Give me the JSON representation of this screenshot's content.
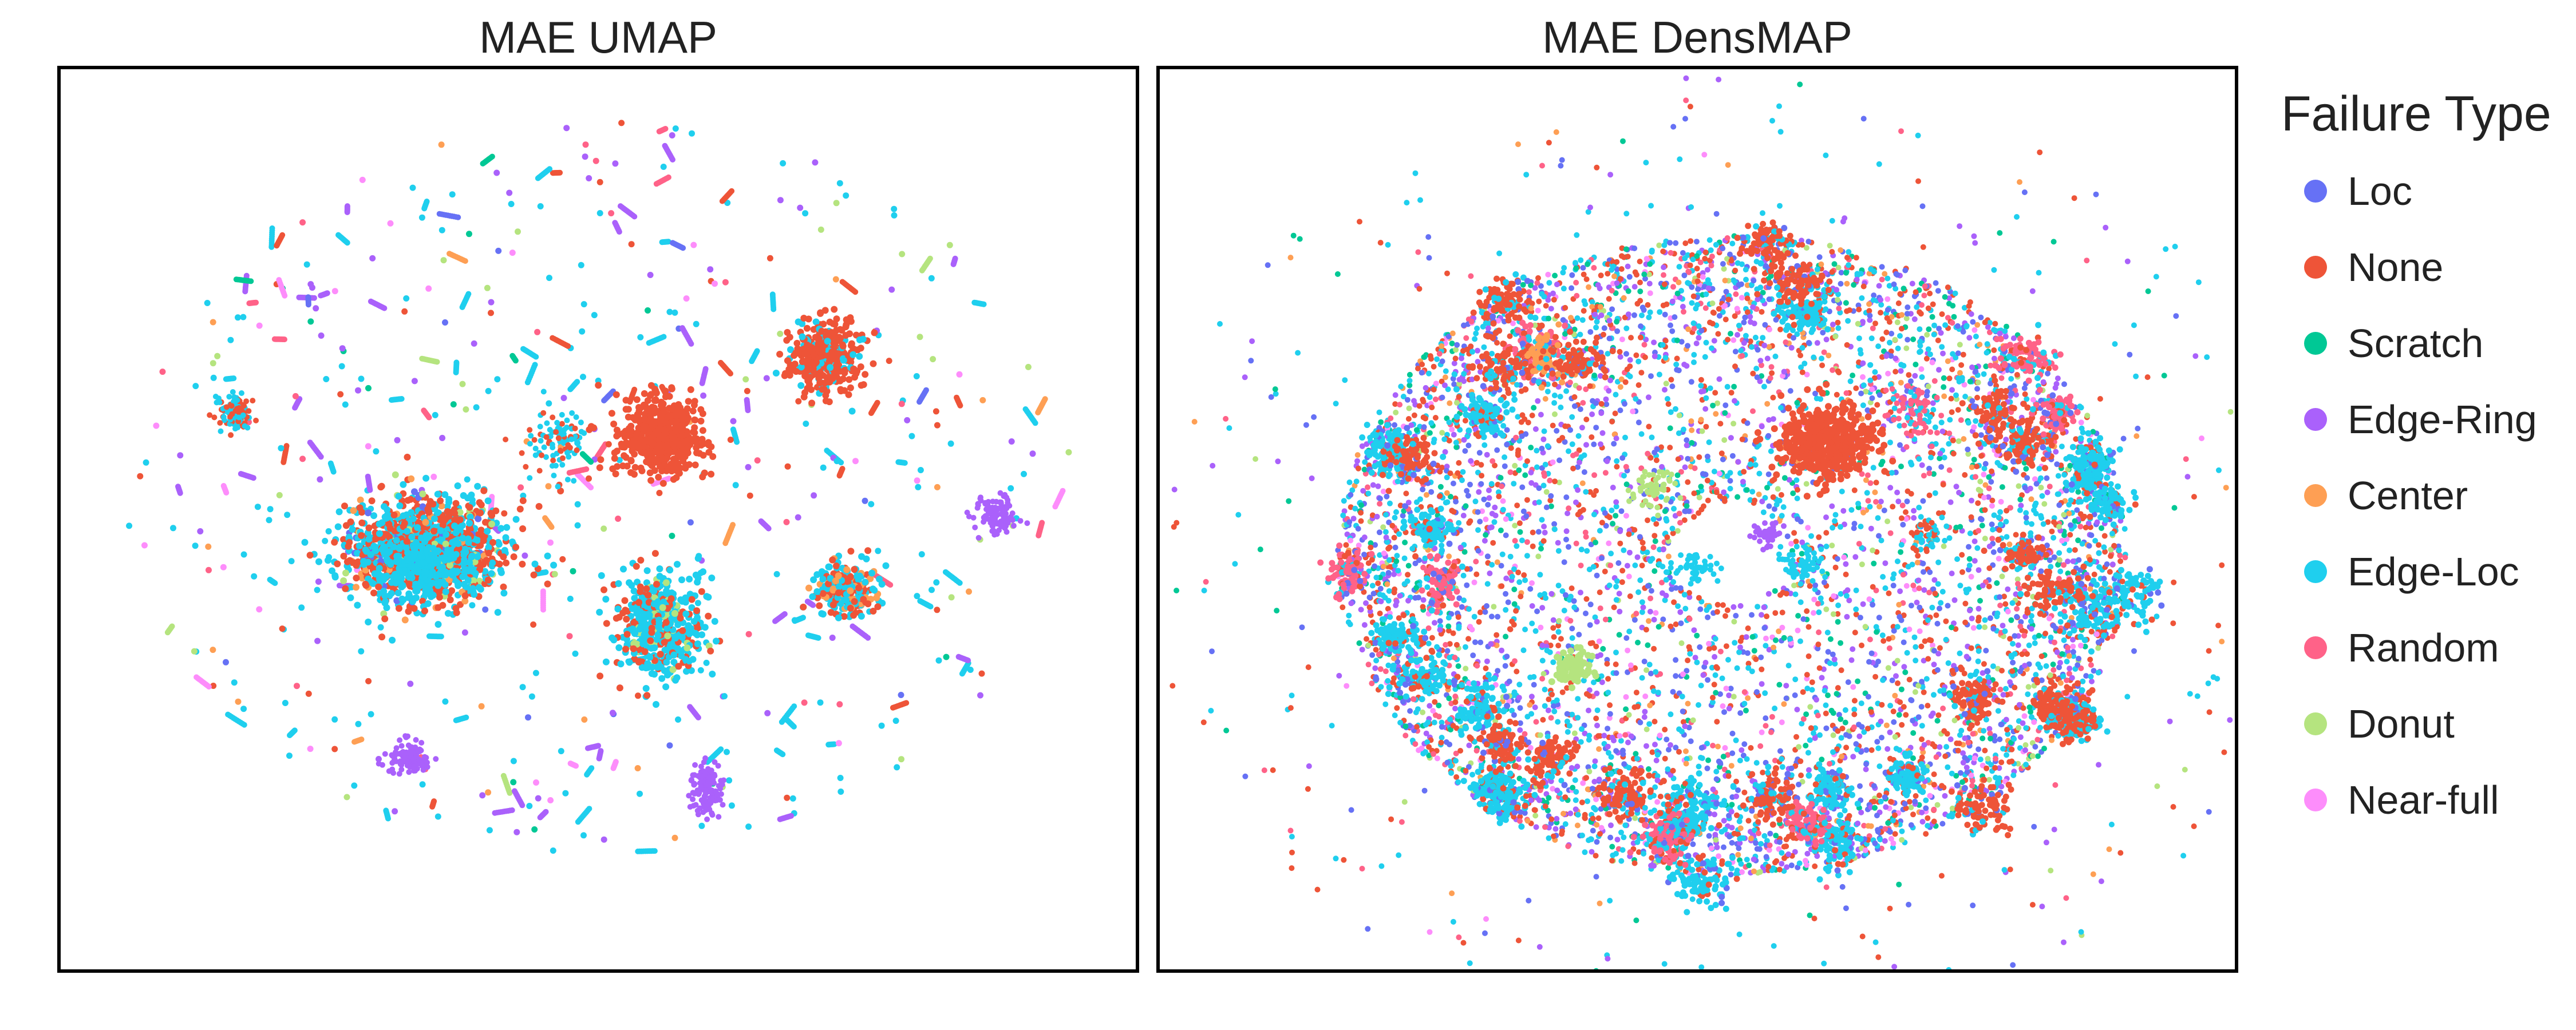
{
  "chart_data": [
    {
      "type": "scatter",
      "title": "MAE UMAP",
      "xlabel": "",
      "ylabel": "",
      "grid": false,
      "layout_style": "scattered-clusters"
    },
    {
      "type": "scatter",
      "title": "MAE DensMAP",
      "xlabel": "",
      "ylabel": "",
      "grid": false,
      "layout_style": "ring"
    }
  ],
  "legend": {
    "title": "Failure Type",
    "placement": "right",
    "items": [
      {
        "label": "Loc",
        "color": "#6671f5"
      },
      {
        "label": "None",
        "color": "#ee5438"
      },
      {
        "label": "Scratch",
        "color": "#00c895"
      },
      {
        "label": "Edge-Ring",
        "color": "#aa61fb"
      },
      {
        "label": "Center",
        "color": "#fe9f54"
      },
      {
        "label": "Edge-Loc",
        "color": "#1fcfee"
      },
      {
        "label": "Random",
        "color": "#ff6288"
      },
      {
        "label": "Donut",
        "color": "#b5e47f"
      },
      {
        "label": "Near-full",
        "color": "#fd8dfb"
      }
    ]
  }
}
